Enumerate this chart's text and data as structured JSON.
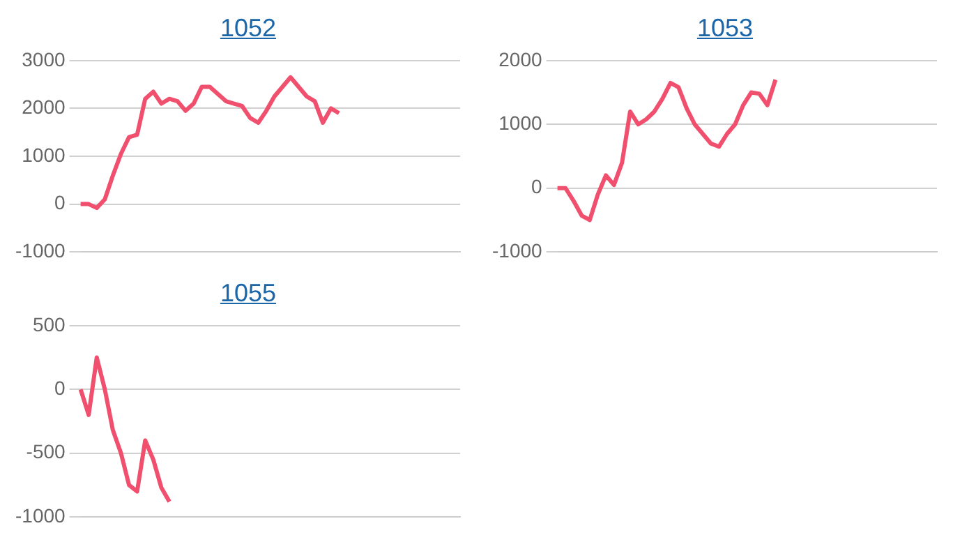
{
  "chart_data": [
    {
      "type": "line",
      "title": "1052",
      "categories": [
        null,
        null,
        null,
        null,
        null,
        null,
        null,
        null,
        null,
        null,
        null,
        null,
        null,
        null,
        null,
        null,
        null,
        null,
        null,
        null,
        null,
        null,
        null,
        null,
        null,
        null,
        null,
        null,
        null,
        null,
        null,
        null,
        null,
        null,
        null,
        null,
        null,
        null,
        null,
        null,
        null,
        null,
        null,
        null,
        null,
        null,
        null,
        null
      ],
      "series": [
        {
          "color": "#f0506e",
          "values": [
            0,
            0,
            -80,
            100,
            600,
            1050,
            1400,
            1450,
            2200,
            2350,
            2100,
            2200,
            2150,
            1950,
            2100,
            2450,
            2450,
            2300,
            2150,
            2100,
            2050,
            1800,
            1700,
            1950,
            2250,
            2450,
            2650,
            2450,
            2250,
            2150,
            1700,
            2000,
            1900,
            null,
            null,
            null,
            null,
            null,
            null,
            null,
            null,
            null,
            null,
            null,
            null,
            null,
            null,
            null
          ]
        }
      ],
      "ylim": [
        -1000,
        3000
      ],
      "yticks": [
        -1000,
        0,
        1000,
        2000,
        3000
      ],
      "grid": "y",
      "tick_labels": "y",
      "marker": "none"
    },
    {
      "type": "line",
      "title": "1053",
      "categories": [
        null,
        null,
        null,
        null,
        null,
        null,
        null,
        null,
        null,
        null,
        null,
        null,
        null,
        null,
        null,
        null,
        null,
        null,
        null,
        null,
        null,
        null,
        null,
        null,
        null,
        null,
        null,
        null,
        null,
        null,
        null,
        null,
        null,
        null,
        null,
        null,
        null,
        null,
        null,
        null,
        null,
        null,
        null,
        null,
        null,
        null,
        null,
        null
      ],
      "series": [
        {
          "color": "#f0506e",
          "values": [
            0,
            0,
            -200,
            -430,
            -500,
            -100,
            200,
            50,
            400,
            1200,
            1000,
            1080,
            1200,
            1400,
            1650,
            1580,
            1250,
            1000,
            850,
            700,
            650,
            850,
            1000,
            1300,
            1500,
            1480,
            1300,
            1700,
            null,
            null,
            null,
            null,
            null,
            null,
            null,
            null,
            null,
            null,
            null,
            null,
            null,
            null,
            null,
            null,
            null,
            null,
            null,
            null
          ]
        }
      ],
      "ylim": [
        -1000,
        2000
      ],
      "yticks": [
        -1000,
        0,
        1000,
        2000
      ],
      "grid": "y",
      "tick_labels": "y",
      "marker": "none"
    },
    {
      "type": "line",
      "title": "1055",
      "categories": [
        null,
        null,
        null,
        null,
        null,
        null,
        null,
        null,
        null,
        null,
        null,
        null,
        null,
        null,
        null,
        null,
        null,
        null,
        null,
        null,
        null,
        null,
        null,
        null,
        null,
        null,
        null,
        null,
        null,
        null,
        null,
        null,
        null,
        null,
        null,
        null,
        null,
        null,
        null,
        null,
        null,
        null,
        null,
        null,
        null,
        null,
        null,
        null
      ],
      "series": [
        {
          "color": "#f0506e",
          "values": [
            0,
            -200,
            250,
            0,
            -320,
            -500,
            -750,
            -800,
            -400,
            -550,
            -770,
            -880,
            null,
            null,
            null,
            null,
            null,
            null,
            null,
            null,
            null,
            null,
            null,
            null,
            null,
            null,
            null,
            null,
            null,
            null,
            null,
            null,
            null,
            null,
            null,
            null,
            null,
            null,
            null,
            null,
            null,
            null,
            null,
            null,
            null,
            null,
            null,
            null
          ]
        }
      ],
      "ylim": [
        -1000,
        500
      ],
      "yticks": [
        -1000,
        -500,
        0,
        500
      ],
      "grid": "y",
      "tick_labels": "y",
      "marker": "none"
    }
  ]
}
